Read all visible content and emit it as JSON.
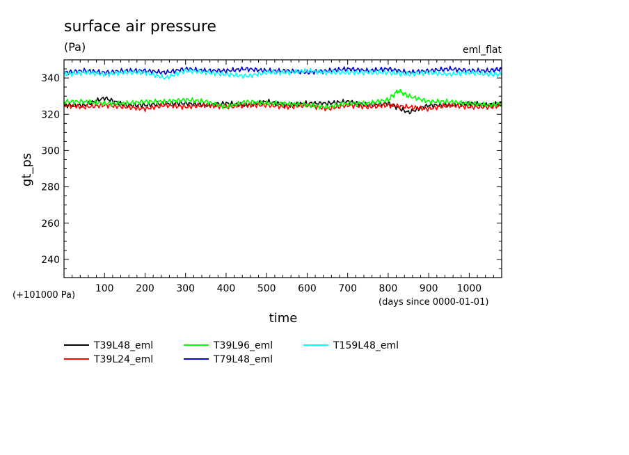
{
  "chart_data": {
    "type": "line",
    "title": "surface air pressure",
    "units": "(Pa)",
    "tag": "eml_flat",
    "ylabel": "gt_ps",
    "xlabel": "time",
    "x_note": "(days since 0000-01-01)",
    "y_offset_note": "(+101000 Pa)",
    "xlim": [
      0,
      1080
    ],
    "ylim": [
      230,
      350
    ],
    "xticks": [
      100,
      200,
      300,
      400,
      500,
      600,
      700,
      800,
      900,
      1000
    ],
    "yticks": [
      240,
      260,
      280,
      300,
      320,
      340
    ],
    "grid": false,
    "legend_position": "bottom",
    "series": [
      {
        "name": "T39L48_eml",
        "color": "#000000",
        "x": [
          0,
          50,
          100,
          150,
          200,
          250,
          300,
          350,
          400,
          450,
          500,
          550,
          600,
          650,
          700,
          750,
          800,
          850,
          900,
          950,
          1000,
          1050,
          1080
        ],
        "values": [
          325,
          325,
          329,
          325,
          325,
          326,
          326,
          325,
          326,
          325,
          327,
          325,
          326,
          326,
          327,
          325,
          326,
          321,
          325,
          325,
          326,
          325,
          326
        ]
      },
      {
        "name": "T39L24_eml",
        "color": "#ff0000",
        "x": [
          0,
          50,
          100,
          150,
          200,
          250,
          300,
          350,
          400,
          450,
          500,
          550,
          600,
          650,
          700,
          750,
          800,
          850,
          900,
          950,
          1000,
          1050,
          1080
        ],
        "values": [
          325,
          324,
          325,
          324,
          323,
          325,
          324,
          325,
          324,
          325,
          325,
          324,
          325,
          323,
          325,
          324,
          325,
          324,
          323,
          325,
          324,
          324,
          325
        ]
      },
      {
        "name": "T39L96_eml",
        "color": "#00ff00",
        "x": [
          0,
          50,
          100,
          150,
          200,
          250,
          300,
          350,
          400,
          450,
          500,
          550,
          600,
          650,
          700,
          750,
          800,
          825,
          850,
          900,
          950,
          1000,
          1050,
          1080
        ],
        "values": [
          327,
          327,
          326,
          326,
          327,
          327,
          328,
          327,
          324,
          327,
          326,
          326,
          325,
          324,
          326,
          326,
          328,
          333,
          330,
          327,
          327,
          326,
          325,
          326
        ]
      },
      {
        "name": "T79L48_eml",
        "color": "#0000cc",
        "x": [
          0,
          50,
          100,
          150,
          200,
          250,
          300,
          350,
          400,
          450,
          500,
          550,
          600,
          650,
          700,
          750,
          800,
          850,
          900,
          950,
          1000,
          1050,
          1080
        ],
        "values": [
          343,
          344,
          343,
          344,
          344,
          343,
          345,
          344,
          344,
          345,
          344,
          344,
          343,
          344,
          345,
          344,
          345,
          343,
          344,
          345,
          344,
          344,
          345
        ]
      },
      {
        "name": "T159L48_eml",
        "color": "#00ffff",
        "x": [
          0,
          50,
          100,
          150,
          200,
          250,
          300,
          350,
          400,
          450,
          500,
          550,
          600,
          650,
          700,
          750,
          800,
          850,
          900,
          950,
          1000,
          1050,
          1080
        ],
        "values": [
          342,
          343,
          342,
          343,
          343,
          340,
          344,
          343,
          342,
          341,
          343,
          343,
          344,
          343,
          343,
          343,
          343,
          342,
          343,
          342,
          343,
          342,
          342
        ]
      }
    ]
  }
}
